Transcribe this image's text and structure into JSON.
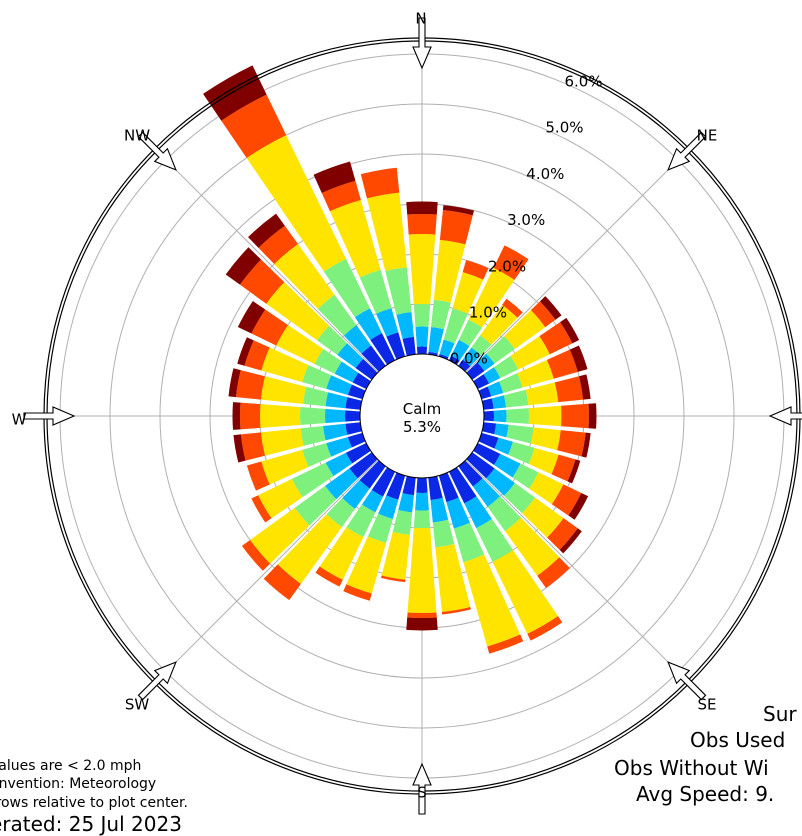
{
  "chart_data": {
    "type": "windrose",
    "radial_ticks": [
      "0.0%",
      "1.0%",
      "2.0%",
      "3.0%",
      "4.0%",
      "5.0%",
      "6.0%"
    ],
    "directions": {
      "N": "N",
      "NE": "NE",
      "E": "",
      "SE": "SE",
      "S": "S",
      "SW": "SW",
      "W": "W",
      "NW": "NW"
    },
    "calm": {
      "label": "Calm",
      "value": "5.3%"
    },
    "bin_colors": [
      "#0a28e6",
      "#00b8ff",
      "#7df07d",
      "#ffe400",
      "#ff4800",
      "#800000"
    ],
    "sectors_deg": [
      0,
      10,
      20,
      30,
      40,
      50,
      60,
      70,
      80,
      90,
      100,
      110,
      120,
      130,
      140,
      150,
      160,
      170,
      180,
      190,
      200,
      210,
      220,
      230,
      240,
      250,
      260,
      270,
      280,
      290,
      300,
      310,
      320,
      330,
      340,
      350
    ],
    "cumulative_percent": [
      [
        0.15,
        0.55,
        1.0,
        2.4,
        2.8,
        3.05
      ],
      [
        0.05,
        0.55,
        1.1,
        2.3,
        2.9,
        3.0
      ],
      [
        0.05,
        0.35,
        1.0,
        1.75,
        2.0,
        2.0
      ],
      [
        0.1,
        0.45,
        0.9,
        2.05,
        2.55,
        2.55
      ],
      [
        0.15,
        0.45,
        0.75,
        1.5,
        1.65,
        1.65
      ],
      [
        0.3,
        0.55,
        1.05,
        1.8,
        2.05,
        2.2
      ],
      [
        0.25,
        0.5,
        0.9,
        1.6,
        2.1,
        2.25
      ],
      [
        0.2,
        0.45,
        0.85,
        1.5,
        2.0,
        2.2
      ],
      [
        0.2,
        0.45,
        0.9,
        1.5,
        2.0,
        2.15
      ],
      [
        0.2,
        0.45,
        0.9,
        1.55,
        2.1,
        2.25
      ],
      [
        0.25,
        0.5,
        1.0,
        1.55,
        2.05,
        2.15
      ],
      [
        0.35,
        0.65,
        1.1,
        1.6,
        1.95,
        2.05
      ],
      [
        0.5,
        0.95,
        1.35,
        1.9,
        2.3,
        2.45
      ],
      [
        0.55,
        1.05,
        1.55,
        2.25,
        2.6,
        2.7
      ],
      [
        0.5,
        1.0,
        1.6,
        2.7,
        3.0,
        3.0
      ],
      [
        0.7,
        1.25,
        2.0,
        3.6,
        3.75,
        3.75
      ],
      [
        0.55,
        1.1,
        1.8,
        3.55,
        3.7,
        3.7
      ],
      [
        0.45,
        0.9,
        1.4,
        2.7,
        2.75,
        2.75
      ],
      [
        0.3,
        0.65,
        1.0,
        2.7,
        2.8,
        3.05
      ],
      [
        0.35,
        0.7,
        1.15,
        2.05,
        2.1,
        2.1
      ],
      [
        0.5,
        0.9,
        1.4,
        2.45,
        2.6,
        2.6
      ],
      [
        0.55,
        0.9,
        1.45,
        2.4,
        2.55,
        2.55
      ],
      [
        0.55,
        1.05,
        1.5,
        2.9,
        3.3,
        3.3
      ],
      [
        0.55,
        1.15,
        1.9,
        3.0,
        3.2,
        3.2
      ],
      [
        0.45,
        0.9,
        1.65,
        2.4,
        2.55,
        2.55
      ],
      [
        0.3,
        0.75,
        1.25,
        2.1,
        2.4,
        2.4
      ],
      [
        0.3,
        0.75,
        1.2,
        2.0,
        2.4,
        2.55
      ],
      [
        0.3,
        0.7,
        1.2,
        2.0,
        2.4,
        2.55
      ],
      [
        0.3,
        0.7,
        1.15,
        2.0,
        2.5,
        2.65
      ],
      [
        0.3,
        0.75,
        1.25,
        2.1,
        2.45,
        2.6
      ],
      [
        0.3,
        0.7,
        1.15,
        2.0,
        2.55,
        2.85
      ],
      [
        0.4,
        0.85,
        1.35,
        2.6,
        3.25,
        3.6
      ],
      [
        0.5,
        1.0,
        1.75,
        3.0,
        3.45,
        3.75
      ],
      [
        0.6,
        1.15,
        2.25,
        5.0,
        5.9,
        6.55
      ],
      [
        0.5,
        1.0,
        1.8,
        3.25,
        3.65,
        4.05
      ],
      [
        0.35,
        0.85,
        1.75,
        3.25,
        3.75,
        3.75
      ]
    ]
  },
  "notes": {
    "values_note": "values are < 2.0 mph",
    "convention_note": "onvention: Meteorology",
    "arrows_note": "rrows relative to plot center.",
    "generated": "erated: 25 Jul 2023"
  },
  "stats": {
    "line1": "Sur",
    "line2": "Obs Used",
    "line3": "Obs Without Wi",
    "line4": "Avg Speed: 9."
  }
}
